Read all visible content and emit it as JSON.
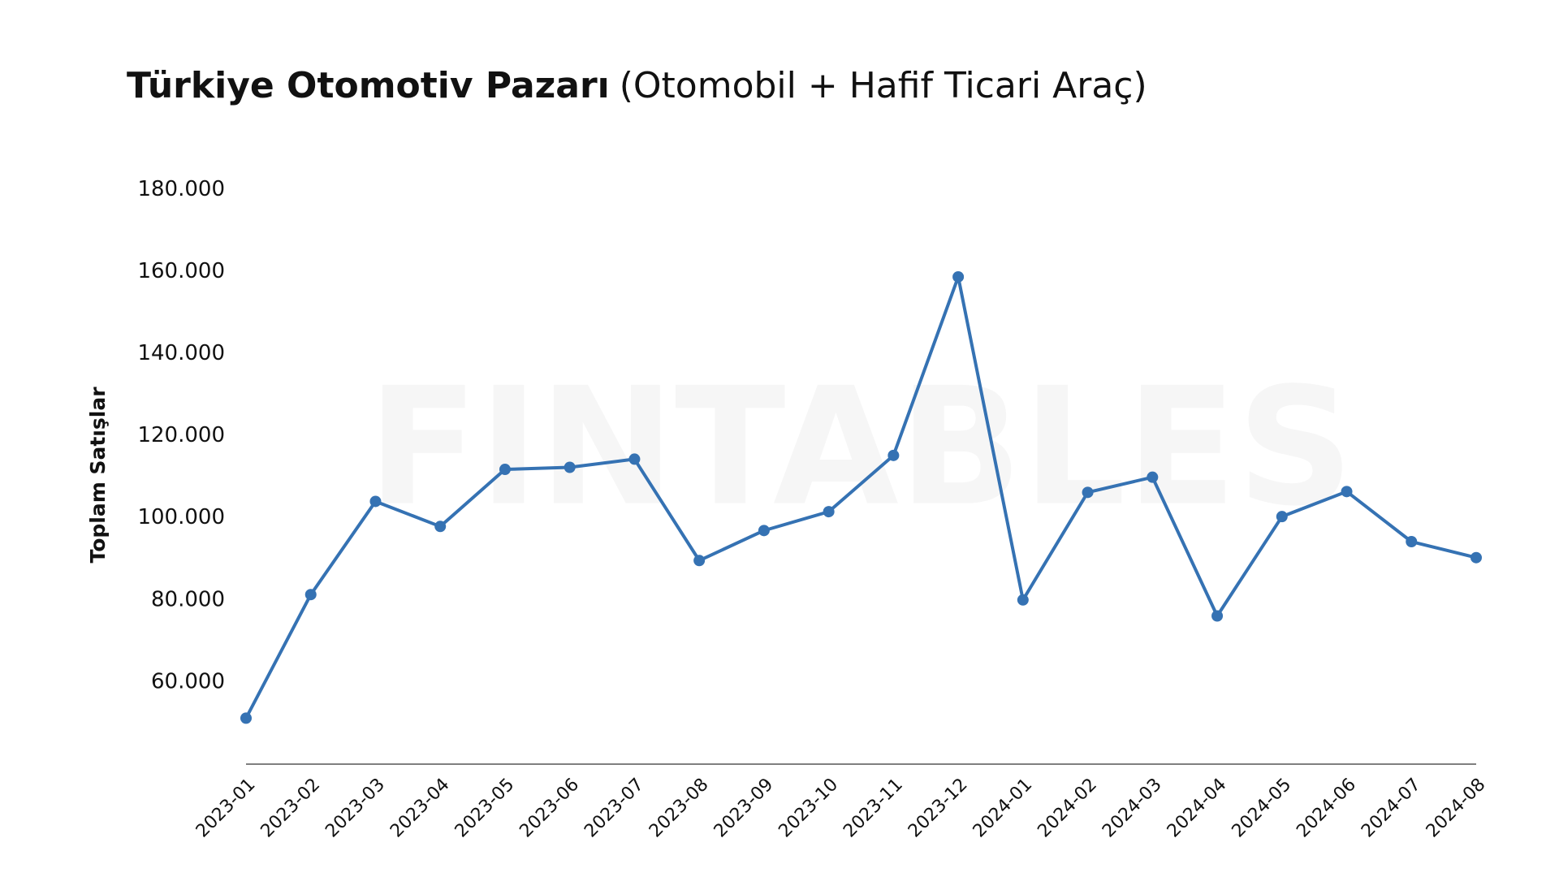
{
  "chart_data": {
    "type": "line",
    "title": "Türkiye Otomotiv Pazarı",
    "subtitle": "(Otomobil + Hafif Ticari Araç)",
    "watermark": "FINTABLES",
    "y_label": "Toplam Satışlar",
    "categories": [
      "2023-01",
      "2023-02",
      "2023-03",
      "2023-04",
      "2023-05",
      "2023-06",
      "2023-07",
      "2023-08",
      "2023-09",
      "2023-10",
      "2023-11",
      "2023-12",
      "2024-01",
      "2024-02",
      "2024-03",
      "2024-04",
      "2024-05",
      "2024-06",
      "2024-07",
      "2024-08"
    ],
    "series": [
      {
        "name": "Toplam Satışlar",
        "color": "#3572b3",
        "values": [
          51200,
          81300,
          104000,
          97900,
          111800,
          112300,
          114300,
          89600,
          96900,
          101500,
          115200,
          158700,
          80000,
          106200,
          109900,
          76100,
          100300,
          106400,
          94200,
          90300
        ]
      }
    ],
    "ylim": [
      40000,
      185000
    ],
    "yticks": [
      {
        "value": 60000,
        "label": "60.000"
      },
      {
        "value": 80000,
        "label": "80.000"
      },
      {
        "value": 100000,
        "label": "100.000"
      },
      {
        "value": 120000,
        "label": "120.000"
      },
      {
        "value": 140000,
        "label": "140.000"
      },
      {
        "value": 160000,
        "label": "160.000"
      },
      {
        "value": 180000,
        "label": "180.000"
      }
    ],
    "grid": false
  }
}
